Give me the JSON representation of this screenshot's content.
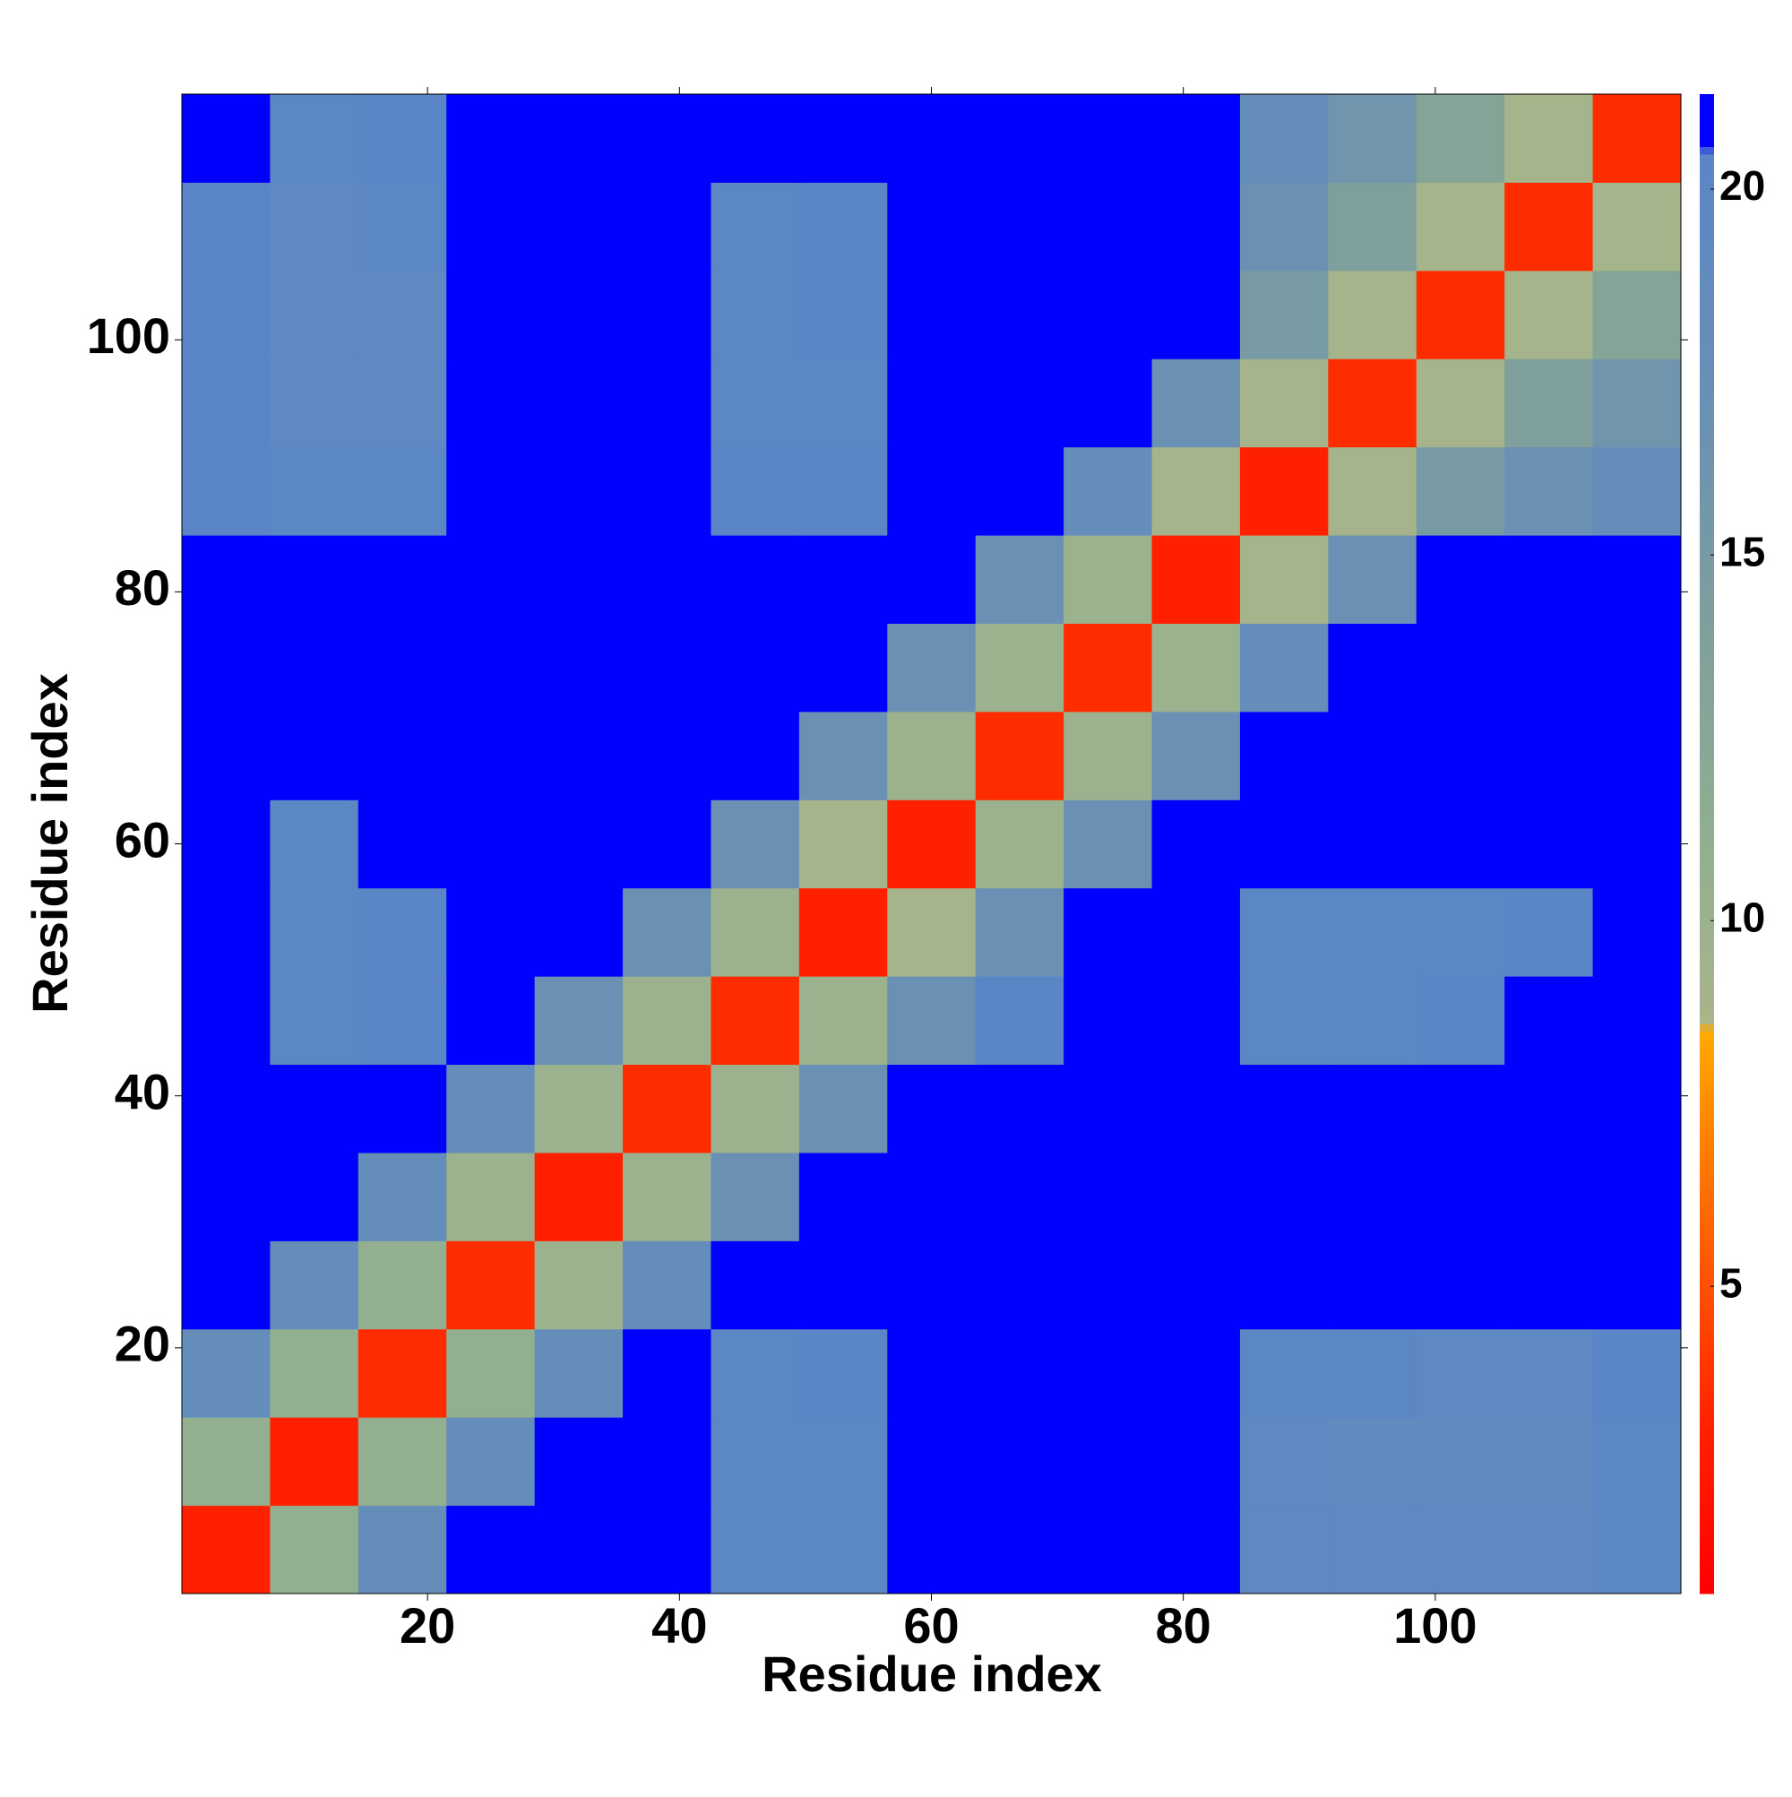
{
  "chart_data": {
    "type": "heatmap",
    "xlabel": "Residue index",
    "ylabel": "Residue index",
    "xlim": [
      0.5,
      119.5
    ],
    "ylim": [
      0.5,
      119.5
    ],
    "xticks": [
      20,
      40,
      60,
      80,
      100
    ],
    "yticks": [
      20,
      40,
      60,
      80,
      100
    ],
    "xbins": [
      0.5,
      7.5,
      14.5,
      21.5,
      28.5,
      35.5,
      42.5,
      49.5,
      56.5,
      63.5,
      70.5,
      77.5,
      84.5,
      91.5,
      98.5,
      105.5,
      112.5,
      119.5
    ],
    "ybins": [
      0.5,
      7.5,
      14.5,
      21.5,
      28.5,
      35.5,
      42.5,
      49.5,
      56.5,
      63.5,
      70.5,
      77.5,
      84.5,
      91.5,
      98.5,
      105.5,
      112.5,
      119.5
    ],
    "z": [
      [
        3,
        11,
        18,
        21,
        21,
        21,
        20,
        20,
        21,
        21,
        21,
        21,
        19.5,
        19.5,
        19.5,
        19.5,
        20
      ],
      [
        11,
        3,
        11,
        18,
        21,
        21,
        20,
        20,
        21,
        21,
        21,
        21,
        19.5,
        19,
        19,
        19,
        20
      ],
      [
        18,
        11,
        3.5,
        11,
        18,
        21,
        20,
        20.5,
        21,
        21,
        21,
        21,
        20,
        20,
        19.5,
        19.5,
        20.5
      ],
      [
        21,
        18,
        11,
        3.5,
        10,
        18,
        21,
        21,
        21,
        21,
        21,
        21,
        21,
        21,
        21,
        21,
        21
      ],
      [
        21,
        21,
        18,
        10,
        3,
        10,
        17,
        21,
        21,
        21,
        21,
        21,
        21,
        21,
        21,
        21,
        21
      ],
      [
        21,
        21,
        21,
        18,
        10,
        3.5,
        10,
        17,
        21,
        21,
        21,
        21,
        21,
        21,
        21,
        21,
        21
      ],
      [
        21,
        20,
        20.5,
        21,
        17,
        10,
        3.5,
        10,
        17,
        20.5,
        21,
        21,
        20,
        20,
        20.5,
        21,
        21
      ],
      [
        21,
        20,
        20.5,
        21,
        21,
        17,
        10,
        3,
        9,
        17,
        21,
        21,
        20,
        20,
        20,
        20.5,
        21
      ],
      [
        21,
        20,
        21,
        21,
        21,
        21,
        17,
        9,
        3,
        10,
        17,
        21,
        21,
        21,
        21,
        21,
        21
      ],
      [
        21,
        21,
        21,
        21,
        21,
        21,
        21,
        17,
        10,
        3.5,
        10,
        17,
        21,
        21,
        21,
        21,
        21
      ],
      [
        21,
        21,
        21,
        21,
        21,
        21,
        21,
        21,
        17,
        10,
        3.5,
        10,
        18,
        21,
        21,
        21,
        21
      ],
      [
        21,
        21,
        21,
        21,
        21,
        21,
        21,
        21,
        21,
        17,
        10,
        3,
        9,
        17,
        21,
        21,
        21
      ],
      [
        20.5,
        20,
        20,
        21,
        21,
        21,
        20.5,
        20.5,
        21,
        21,
        18,
        9,
        3,
        9,
        15,
        17,
        18
      ],
      [
        20.5,
        19.5,
        19.5,
        21,
        21,
        21,
        20,
        20,
        21,
        21,
        21,
        17,
        9,
        3.5,
        9,
        14,
        16
      ],
      [
        20.5,
        19.5,
        19.5,
        21,
        21,
        21,
        20,
        20.5,
        21,
        21,
        21,
        21,
        15,
        9,
        3.5,
        9,
        13
      ],
      [
        20.5,
        19.5,
        20,
        21,
        21,
        21,
        20,
        20.5,
        21,
        21,
        21,
        21,
        17,
        14,
        9,
        3.5,
        9
      ],
      [
        21,
        20,
        20.5,
        21,
        21,
        21,
        21,
        21,
        21,
        21,
        21,
        21,
        18,
        16,
        13,
        9,
        3.5
      ]
    ],
    "clim": [
      0.8,
      21.3
    ],
    "cticks": [
      5,
      10,
      15,
      20
    ],
    "colorscale": [
      [
        0.8,
        "#ff0000"
      ],
      [
        3,
        "#ff2000"
      ],
      [
        5,
        "#ff5000"
      ],
      [
        7,
        "#ff8000"
      ],
      [
        8.5,
        "#ffaa00"
      ],
      [
        8.6,
        "#a9b58a"
      ],
      [
        11,
        "#92af90"
      ],
      [
        14,
        "#7f9f9c"
      ],
      [
        17,
        "#6a90b4"
      ],
      [
        20.5,
        "#5a86c8"
      ],
      [
        20.6,
        "#0000ff"
      ],
      [
        21.3,
        "#0000ff"
      ]
    ]
  }
}
